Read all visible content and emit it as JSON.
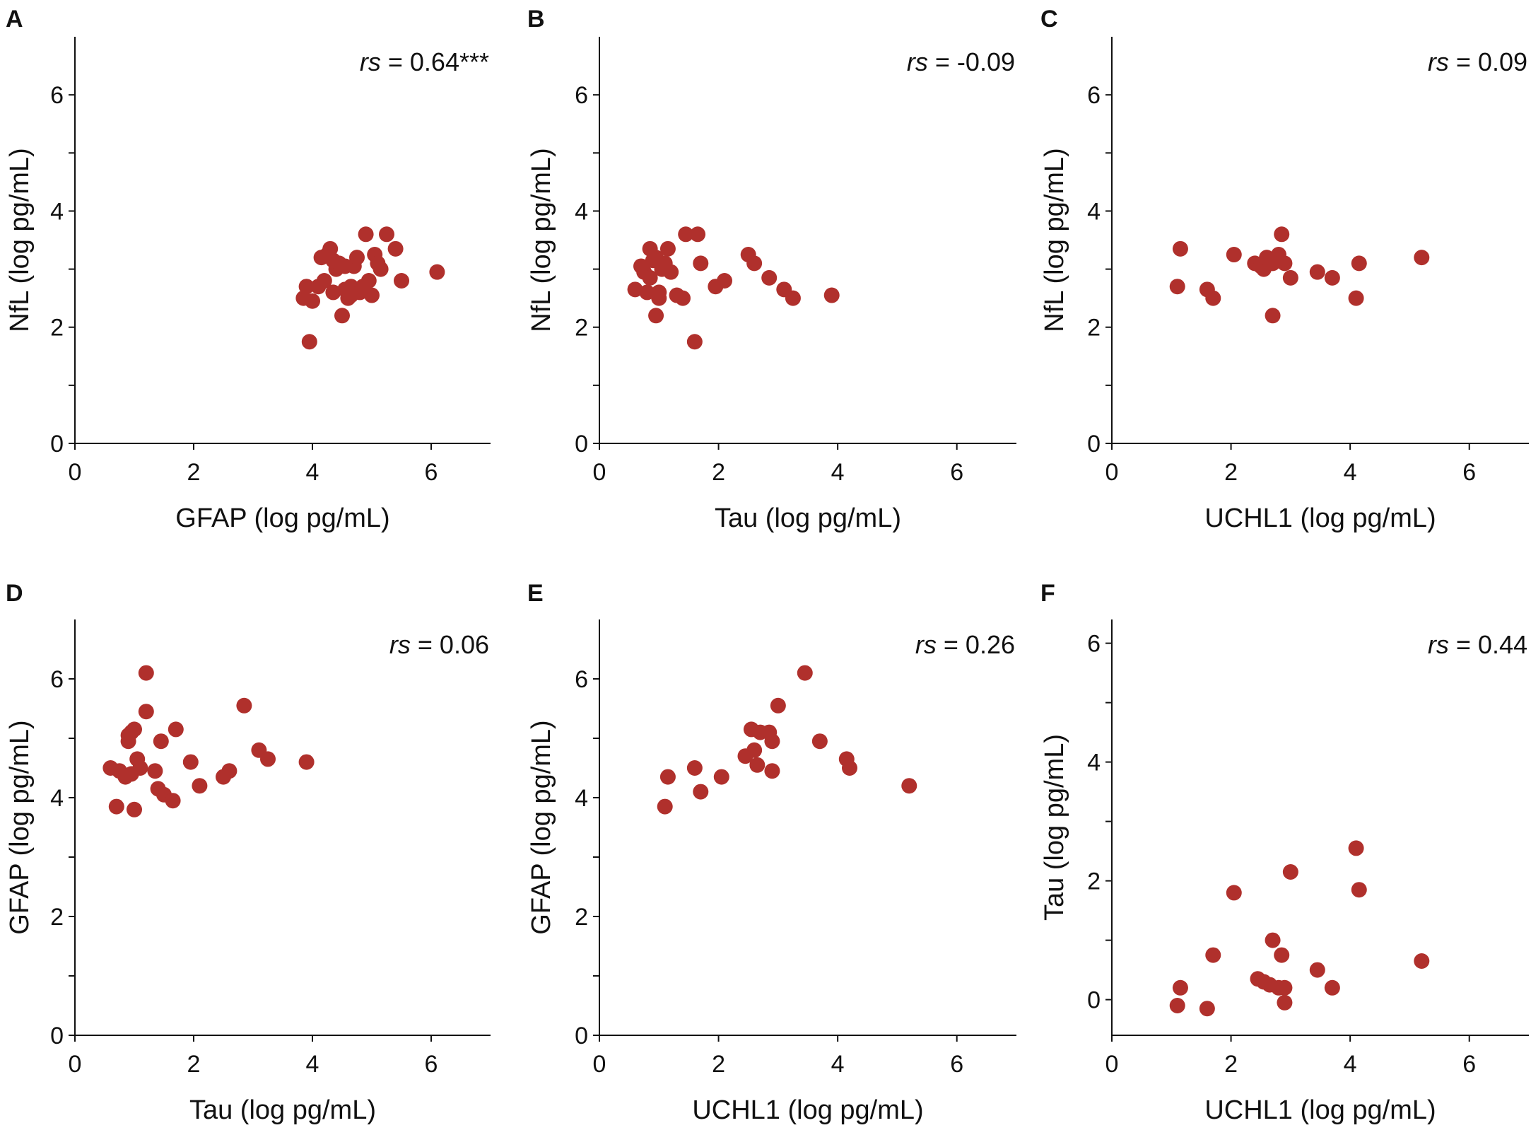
{
  "colors": {
    "marker": "#b0302c",
    "axis": "#111111"
  },
  "chart_data": [
    {
      "type": "scatter",
      "panel": "A",
      "stat_label": "rs",
      "stat_value": " = 0.64***",
      "xlabel": "GFAP (log pg/mL)",
      "ylabel": "NfL (log pg/mL)",
      "xlim": [
        0,
        7
      ],
      "ylim": [
        0,
        7
      ],
      "xticks": [
        0,
        2,
        4,
        6
      ],
      "yticks": [
        0,
        2,
        4,
        6
      ],
      "x": [
        3.95,
        4.0,
        4.1,
        4.15,
        4.2,
        4.25,
        4.3,
        4.35,
        4.4,
        4.45,
        4.5,
        4.55,
        4.6,
        4.65,
        4.7,
        4.75,
        4.8,
        4.9,
        4.95,
        5.0,
        5.05,
        5.1,
        5.15,
        5.25,
        5.4,
        5.5,
        6.1,
        4.35,
        4.65,
        4.85,
        4.55,
        3.85,
        3.9
      ],
      "y": [
        1.75,
        2.45,
        2.7,
        3.2,
        2.8,
        3.25,
        3.35,
        2.6,
        3.0,
        3.1,
        2.2,
        2.65,
        2.5,
        2.7,
        3.05,
        3.2,
        2.6,
        3.6,
        2.8,
        2.55,
        3.25,
        3.1,
        3.0,
        3.6,
        3.35,
        2.8,
        2.95,
        3.15,
        2.55,
        2.7,
        3.05,
        2.5,
        2.7
      ]
    },
    {
      "type": "scatter",
      "panel": "B",
      "stat_label": "rs",
      "stat_value": " = -0.09",
      "xlabel": "Tau (log pg/mL)",
      "ylabel": "NfL (log pg/mL)",
      "xlim": [
        0,
        7
      ],
      "ylim": [
        0,
        7
      ],
      "xticks": [
        0,
        2,
        4,
        6
      ],
      "yticks": [
        0,
        2,
        4,
        6
      ],
      "x": [
        0.6,
        0.7,
        0.75,
        0.8,
        0.85,
        0.9,
        0.95,
        1.0,
        1.05,
        1.1,
        1.15,
        1.2,
        1.3,
        1.4,
        1.45,
        1.6,
        1.65,
        1.7,
        1.95,
        2.1,
        2.5,
        2.6,
        2.85,
        3.1,
        3.25,
        3.9,
        0.95,
        0.85,
        1.0
      ],
      "y": [
        2.65,
        3.05,
        2.95,
        2.6,
        3.35,
        3.15,
        2.2,
        2.5,
        3.0,
        3.1,
        3.35,
        2.95,
        2.55,
        2.5,
        3.6,
        1.75,
        3.6,
        3.1,
        2.7,
        2.8,
        3.25,
        3.1,
        2.85,
        2.65,
        2.5,
        2.55,
        3.2,
        2.85,
        2.6
      ]
    },
    {
      "type": "scatter",
      "panel": "C",
      "stat_label": "rs",
      "stat_value": " = 0.09",
      "xlabel": "UCHL1 (log pg/mL)",
      "ylabel": "NfL (log pg/mL)",
      "xlim": [
        0,
        7
      ],
      "ylim": [
        0,
        7
      ],
      "xticks": [
        0,
        2,
        4,
        6
      ],
      "yticks": [
        0,
        2,
        4,
        6
      ],
      "x": [
        1.1,
        1.15,
        1.6,
        1.7,
        2.05,
        2.4,
        2.5,
        2.55,
        2.6,
        2.65,
        2.7,
        2.8,
        2.85,
        2.9,
        3.0,
        3.45,
        3.7,
        4.1,
        4.15,
        5.2,
        2.7
      ],
      "y": [
        2.7,
        3.35,
        2.65,
        2.5,
        3.25,
        3.1,
        3.05,
        3.0,
        3.2,
        3.15,
        2.2,
        3.25,
        3.6,
        3.1,
        2.85,
        2.95,
        2.85,
        2.5,
        3.1,
        3.2,
        3.1
      ]
    },
    {
      "type": "scatter",
      "panel": "D",
      "stat_label": "rs",
      "stat_value": " = 0.06",
      "xlabel": "Tau (log pg/mL)",
      "ylabel": "GFAP (log pg/mL)",
      "xlim": [
        0,
        7
      ],
      "ylim": [
        0,
        7
      ],
      "xticks": [
        0,
        2,
        4,
        6
      ],
      "yticks": [
        0,
        2,
        4,
        6
      ],
      "x": [
        0.6,
        0.7,
        0.75,
        0.85,
        0.9,
        0.9,
        0.95,
        1.0,
        1.0,
        1.05,
        1.1,
        1.2,
        1.2,
        1.35,
        1.4,
        1.45,
        1.5,
        1.65,
        1.7,
        1.95,
        2.1,
        2.5,
        2.6,
        2.85,
        3.1,
        3.25,
        3.9,
        0.95
      ],
      "y": [
        4.5,
        3.85,
        4.45,
        4.35,
        5.05,
        4.95,
        4.4,
        5.15,
        3.8,
        4.65,
        4.5,
        6.1,
        5.45,
        4.45,
        4.15,
        4.95,
        4.05,
        3.95,
        5.15,
        4.6,
        4.2,
        4.35,
        4.45,
        5.55,
        4.8,
        4.65,
        4.6,
        5.1
      ]
    },
    {
      "type": "scatter",
      "panel": "E",
      "stat_label": "rs",
      "stat_value": " = 0.26",
      "xlabel": "UCHL1 (log pg/mL)",
      "ylabel": "GFAP (log pg/mL)",
      "xlim": [
        0,
        7
      ],
      "ylim": [
        0,
        7
      ],
      "xticks": [
        0,
        2,
        4,
        6
      ],
      "yticks": [
        0,
        2,
        4,
        6
      ],
      "x": [
        1.1,
        1.15,
        1.6,
        1.7,
        2.05,
        2.45,
        2.55,
        2.6,
        2.65,
        2.7,
        2.85,
        2.9,
        2.9,
        3.0,
        3.45,
        3.7,
        4.15,
        4.2,
        5.2
      ],
      "y": [
        3.85,
        4.35,
        4.5,
        4.1,
        4.35,
        4.7,
        5.15,
        4.8,
        4.55,
        5.1,
        5.1,
        4.95,
        4.45,
        5.55,
        6.1,
        4.95,
        4.65,
        4.5,
        4.2
      ]
    },
    {
      "type": "scatter",
      "panel": "F",
      "stat_label": "rs",
      "stat_value": " = 0.44",
      "xlabel": "UCHL1 (log pg/mL)",
      "ylabel": "Tau (log pg/mL)",
      "xlim": [
        0,
        7
      ],
      "ylim": [
        -0.6,
        6.4
      ],
      "xticks": [
        0,
        2,
        4,
        6
      ],
      "yticks": [
        0,
        2,
        4,
        6
      ],
      "x": [
        1.1,
        1.15,
        1.6,
        1.7,
        2.05,
        2.45,
        2.55,
        2.65,
        2.7,
        2.8,
        2.85,
        2.9,
        2.9,
        3.0,
        3.45,
        3.7,
        4.1,
        4.15,
        5.2
      ],
      "y": [
        -0.1,
        0.2,
        -0.15,
        0.75,
        1.8,
        0.35,
        0.3,
        0.25,
        1.0,
        0.2,
        0.75,
        -0.05,
        0.2,
        2.15,
        0.5,
        0.2,
        2.55,
        1.85,
        0.65
      ]
    }
  ]
}
